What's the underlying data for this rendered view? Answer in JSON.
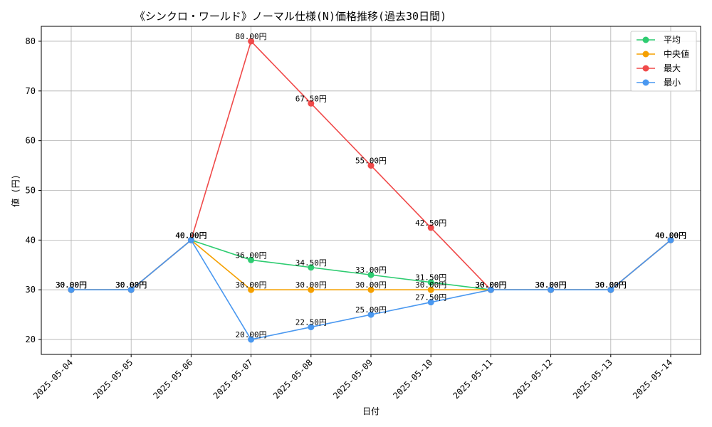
{
  "chart_data": {
    "type": "line",
    "title": "《シンクロ・ワールド》ノーマル仕様(N)価格推移(過去30日間)",
    "xlabel": "日付",
    "ylabel": "値 (円)",
    "x": [
      "2025-05-04",
      "2025-05-05",
      "2025-05-06",
      "2025-05-07",
      "2025-05-08",
      "2025-05-09",
      "2025-05-10",
      "2025-05-11",
      "2025-05-12",
      "2025-05-13",
      "2025-05-14"
    ],
    "ylim": [
      17,
      83
    ],
    "yticks": [
      20,
      30,
      40,
      50,
      60,
      70,
      80
    ],
    "grid": true,
    "legend_position": "top-right",
    "label_suffix": "円",
    "series": [
      {
        "name": "平均",
        "color": "#2ecc71",
        "values": [
          30,
          30,
          40,
          36,
          34.5,
          33,
          31.5,
          30,
          30,
          30,
          40
        ]
      },
      {
        "name": "中央値",
        "color": "#f5a000",
        "values": [
          30,
          30,
          40,
          30,
          30,
          30,
          30,
          30,
          30,
          30,
          40
        ]
      },
      {
        "name": "最大",
        "color": "#f04a4a",
        "values": [
          30,
          30,
          40,
          80,
          67.5,
          55,
          42.5,
          30,
          30,
          30,
          40
        ]
      },
      {
        "name": "最小",
        "color": "#4a98f0",
        "values": [
          30,
          30,
          40,
          20,
          22.5,
          25,
          27.5,
          30,
          30,
          30,
          40
        ]
      }
    ]
  }
}
